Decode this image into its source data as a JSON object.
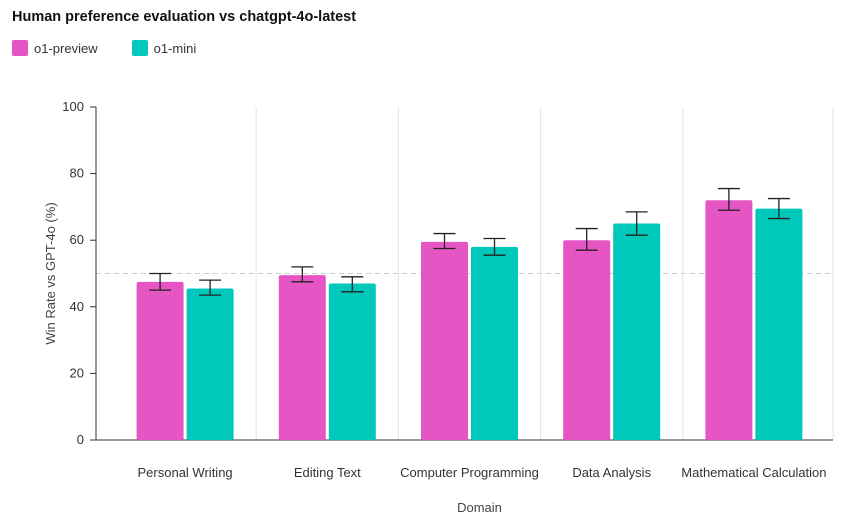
{
  "chart_data": {
    "type": "bar",
    "title": "Human preference evaluation vs chatgpt-4o-latest",
    "xlabel": "Domain",
    "ylabel": "Win Rate vs GPT-4o (%)",
    "ylim": [
      0,
      100
    ],
    "yticks": [
      0,
      20,
      40,
      60,
      80,
      100
    ],
    "reference_line": 50,
    "legend_position": "top-left",
    "categories": [
      "Personal Writing",
      "Editing Text",
      "Computer Programming",
      "Data Analysis",
      "Mathematical Calculation"
    ],
    "series": [
      {
        "name": "o1-preview",
        "color": "#e655c4",
        "values": [
          47.5,
          49.5,
          59.5,
          60,
          72
        ],
        "error_low": [
          45.0,
          47.5,
          57.5,
          57.0,
          69.0
        ],
        "error_high": [
          50.0,
          52.0,
          62.0,
          63.5,
          75.5
        ]
      },
      {
        "name": "o1-mini",
        "color": "#00c8bb",
        "values": [
          45.5,
          47,
          58,
          65,
          69.5
        ],
        "error_low": [
          43.5,
          44.5,
          55.5,
          61.5,
          66.5
        ],
        "error_high": [
          48.0,
          49.0,
          60.5,
          68.5,
          72.5
        ]
      }
    ]
  }
}
